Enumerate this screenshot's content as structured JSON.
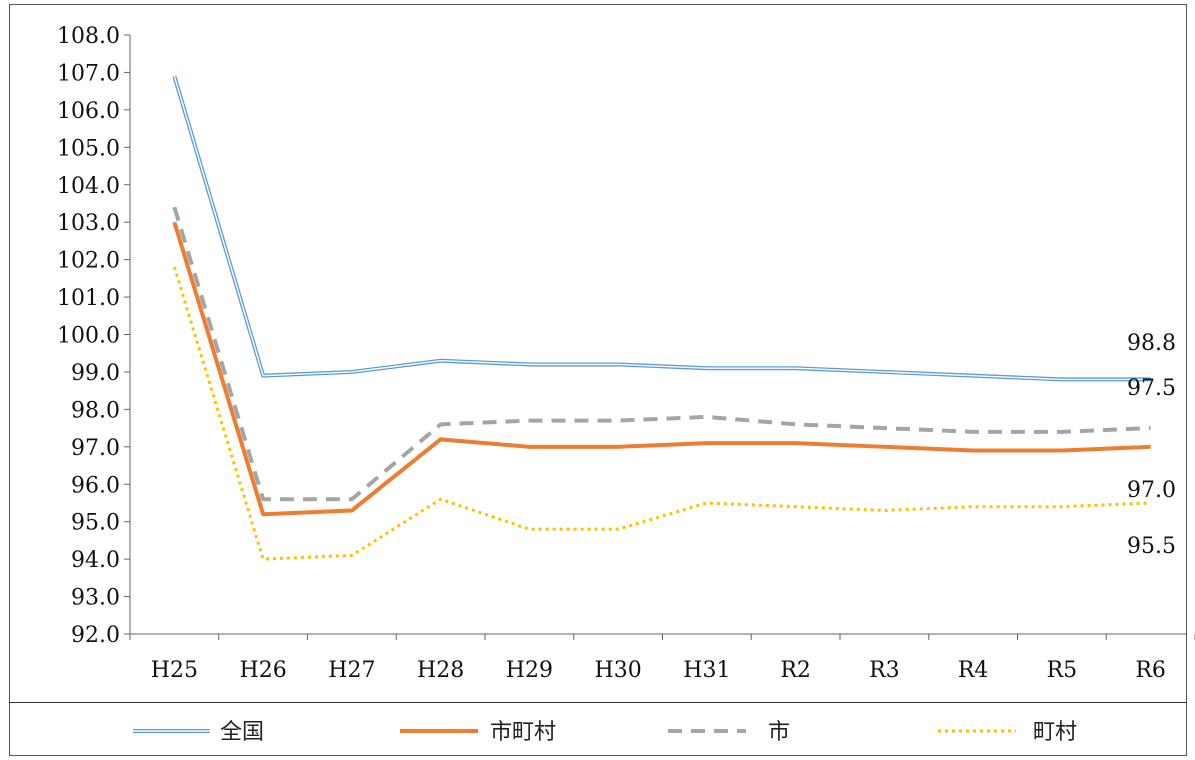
{
  "chart_data": {
    "type": "line",
    "title": "",
    "xlabel": "",
    "ylabel": "",
    "categories": [
      "H25",
      "H26",
      "H27",
      "H28",
      "H29",
      "H30",
      "H31",
      "R2",
      "R3",
      "R4",
      "R5",
      "R6"
    ],
    "ylim": [
      92.0,
      108.0
    ],
    "yticks": [
      "92.0",
      "93.0",
      "94.0",
      "95.0",
      "96.0",
      "97.0",
      "98.0",
      "99.0",
      "100.0",
      "101.0",
      "102.0",
      "103.0",
      "104.0",
      "105.0",
      "106.0",
      "107.0",
      "108.0"
    ],
    "grid": false,
    "legend_position": "bottom",
    "series": [
      {
        "name": "全国",
        "color": "#5b9bd5",
        "style": "double",
        "values": [
          106.9,
          98.9,
          99.0,
          99.3,
          99.2,
          99.2,
          99.1,
          99.1,
          99.0,
          98.9,
          98.8,
          98.8
        ]
      },
      {
        "name": "市町村",
        "color": "#ed7d31",
        "style": "solid",
        "values": [
          103.0,
          95.2,
          95.3,
          97.2,
          97.0,
          97.0,
          97.1,
          97.1,
          97.0,
          96.9,
          96.9,
          97.0
        ]
      },
      {
        "name": "市",
        "color": "#a5a5a5",
        "style": "dashed",
        "values": [
          103.4,
          95.6,
          95.6,
          97.6,
          97.7,
          97.7,
          97.8,
          97.6,
          97.5,
          97.4,
          97.4,
          97.5
        ]
      },
      {
        "name": "町村",
        "color": "#ffc000",
        "style": "dotted",
        "values": [
          101.8,
          94.0,
          94.1,
          95.6,
          94.8,
          94.8,
          95.5,
          95.4,
          95.3,
          95.4,
          95.4,
          95.5
        ]
      }
    ],
    "end_labels": [
      "98.8",
      "97.5",
      "97.0",
      "95.5"
    ]
  }
}
